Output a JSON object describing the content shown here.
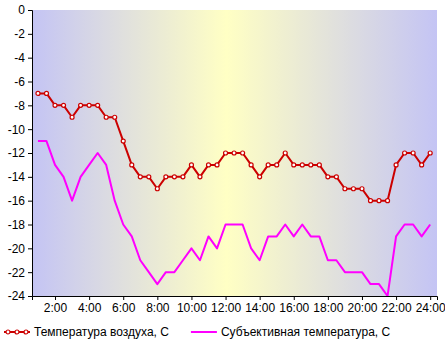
{
  "chart_data": {
    "type": "line",
    "x": [
      1,
      1.5,
      2,
      2.5,
      3,
      3.5,
      4,
      4.5,
      5,
      5.5,
      6,
      6.5,
      7,
      7.5,
      8,
      8.5,
      9,
      9.5,
      10,
      10.5,
      11,
      11.5,
      12,
      12.5,
      13,
      13.5,
      14,
      14.5,
      15,
      15.5,
      16,
      16.5,
      17,
      17.5,
      18,
      18.5,
      19,
      19.5,
      20,
      20.5,
      21,
      21.5,
      22,
      22.5,
      23,
      23.5,
      24
    ],
    "series": [
      {
        "name": "Температура воздуха, С",
        "color": "#cc0000",
        "marker": "circle",
        "values": [
          -7,
          -7,
          -8,
          -8,
          -9,
          -8,
          -8,
          -8,
          -9,
          -9,
          -11,
          -13,
          -14,
          -14,
          -15,
          -14,
          -14,
          -14,
          -13,
          -14,
          -13,
          -13,
          -12,
          -12,
          -12,
          -13,
          -14,
          -13,
          -13,
          -12,
          -13,
          -13,
          -13,
          -13,
          -14,
          -14,
          -15,
          -15,
          -15,
          -16,
          -16,
          -16,
          -13,
          -12,
          -12,
          -13,
          -12
        ]
      },
      {
        "name": "Субъективная температура, С",
        "color": "#ff00ff",
        "marker": "none",
        "values": [
          -11,
          -11,
          -13,
          -14,
          -16,
          -14,
          -13,
          -12,
          -13,
          -16,
          -18,
          -19,
          -21,
          -22,
          -23,
          -22,
          -22,
          -21,
          -20,
          -21,
          -19,
          -20,
          -18,
          -18,
          -18,
          -20,
          -21,
          -19,
          -19,
          -18,
          -19,
          -18,
          -19,
          -19,
          -21,
          -21,
          -22,
          -22,
          -22,
          -23,
          -23,
          -24,
          -19,
          -18,
          -18,
          -19,
          -18
        ]
      }
    ],
    "xlim": [
      0.65,
      24.4
    ],
    "xticks": [
      {
        "value": 2,
        "label": "2:00"
      },
      {
        "value": 4,
        "label": "4:00"
      },
      {
        "value": 6,
        "label": "6:00"
      },
      {
        "value": 8,
        "label": "8:00"
      },
      {
        "value": 10,
        "label": "10:00"
      },
      {
        "value": 12,
        "label": "12:00"
      },
      {
        "value": 14,
        "label": "14:00"
      },
      {
        "value": 16,
        "label": "16:00"
      },
      {
        "value": 18,
        "label": "18:00"
      },
      {
        "value": 20,
        "label": "20:00"
      },
      {
        "value": 22,
        "label": "22:00"
      },
      {
        "value": 24,
        "label": "24:00"
      }
    ],
    "ylim": [
      -24,
      0
    ],
    "yticks": [
      0,
      -2,
      -4,
      -6,
      -8,
      -10,
      -12,
      -14,
      -16,
      -18,
      -20,
      -22,
      -24
    ],
    "grid": false,
    "legend": "bottom"
  }
}
